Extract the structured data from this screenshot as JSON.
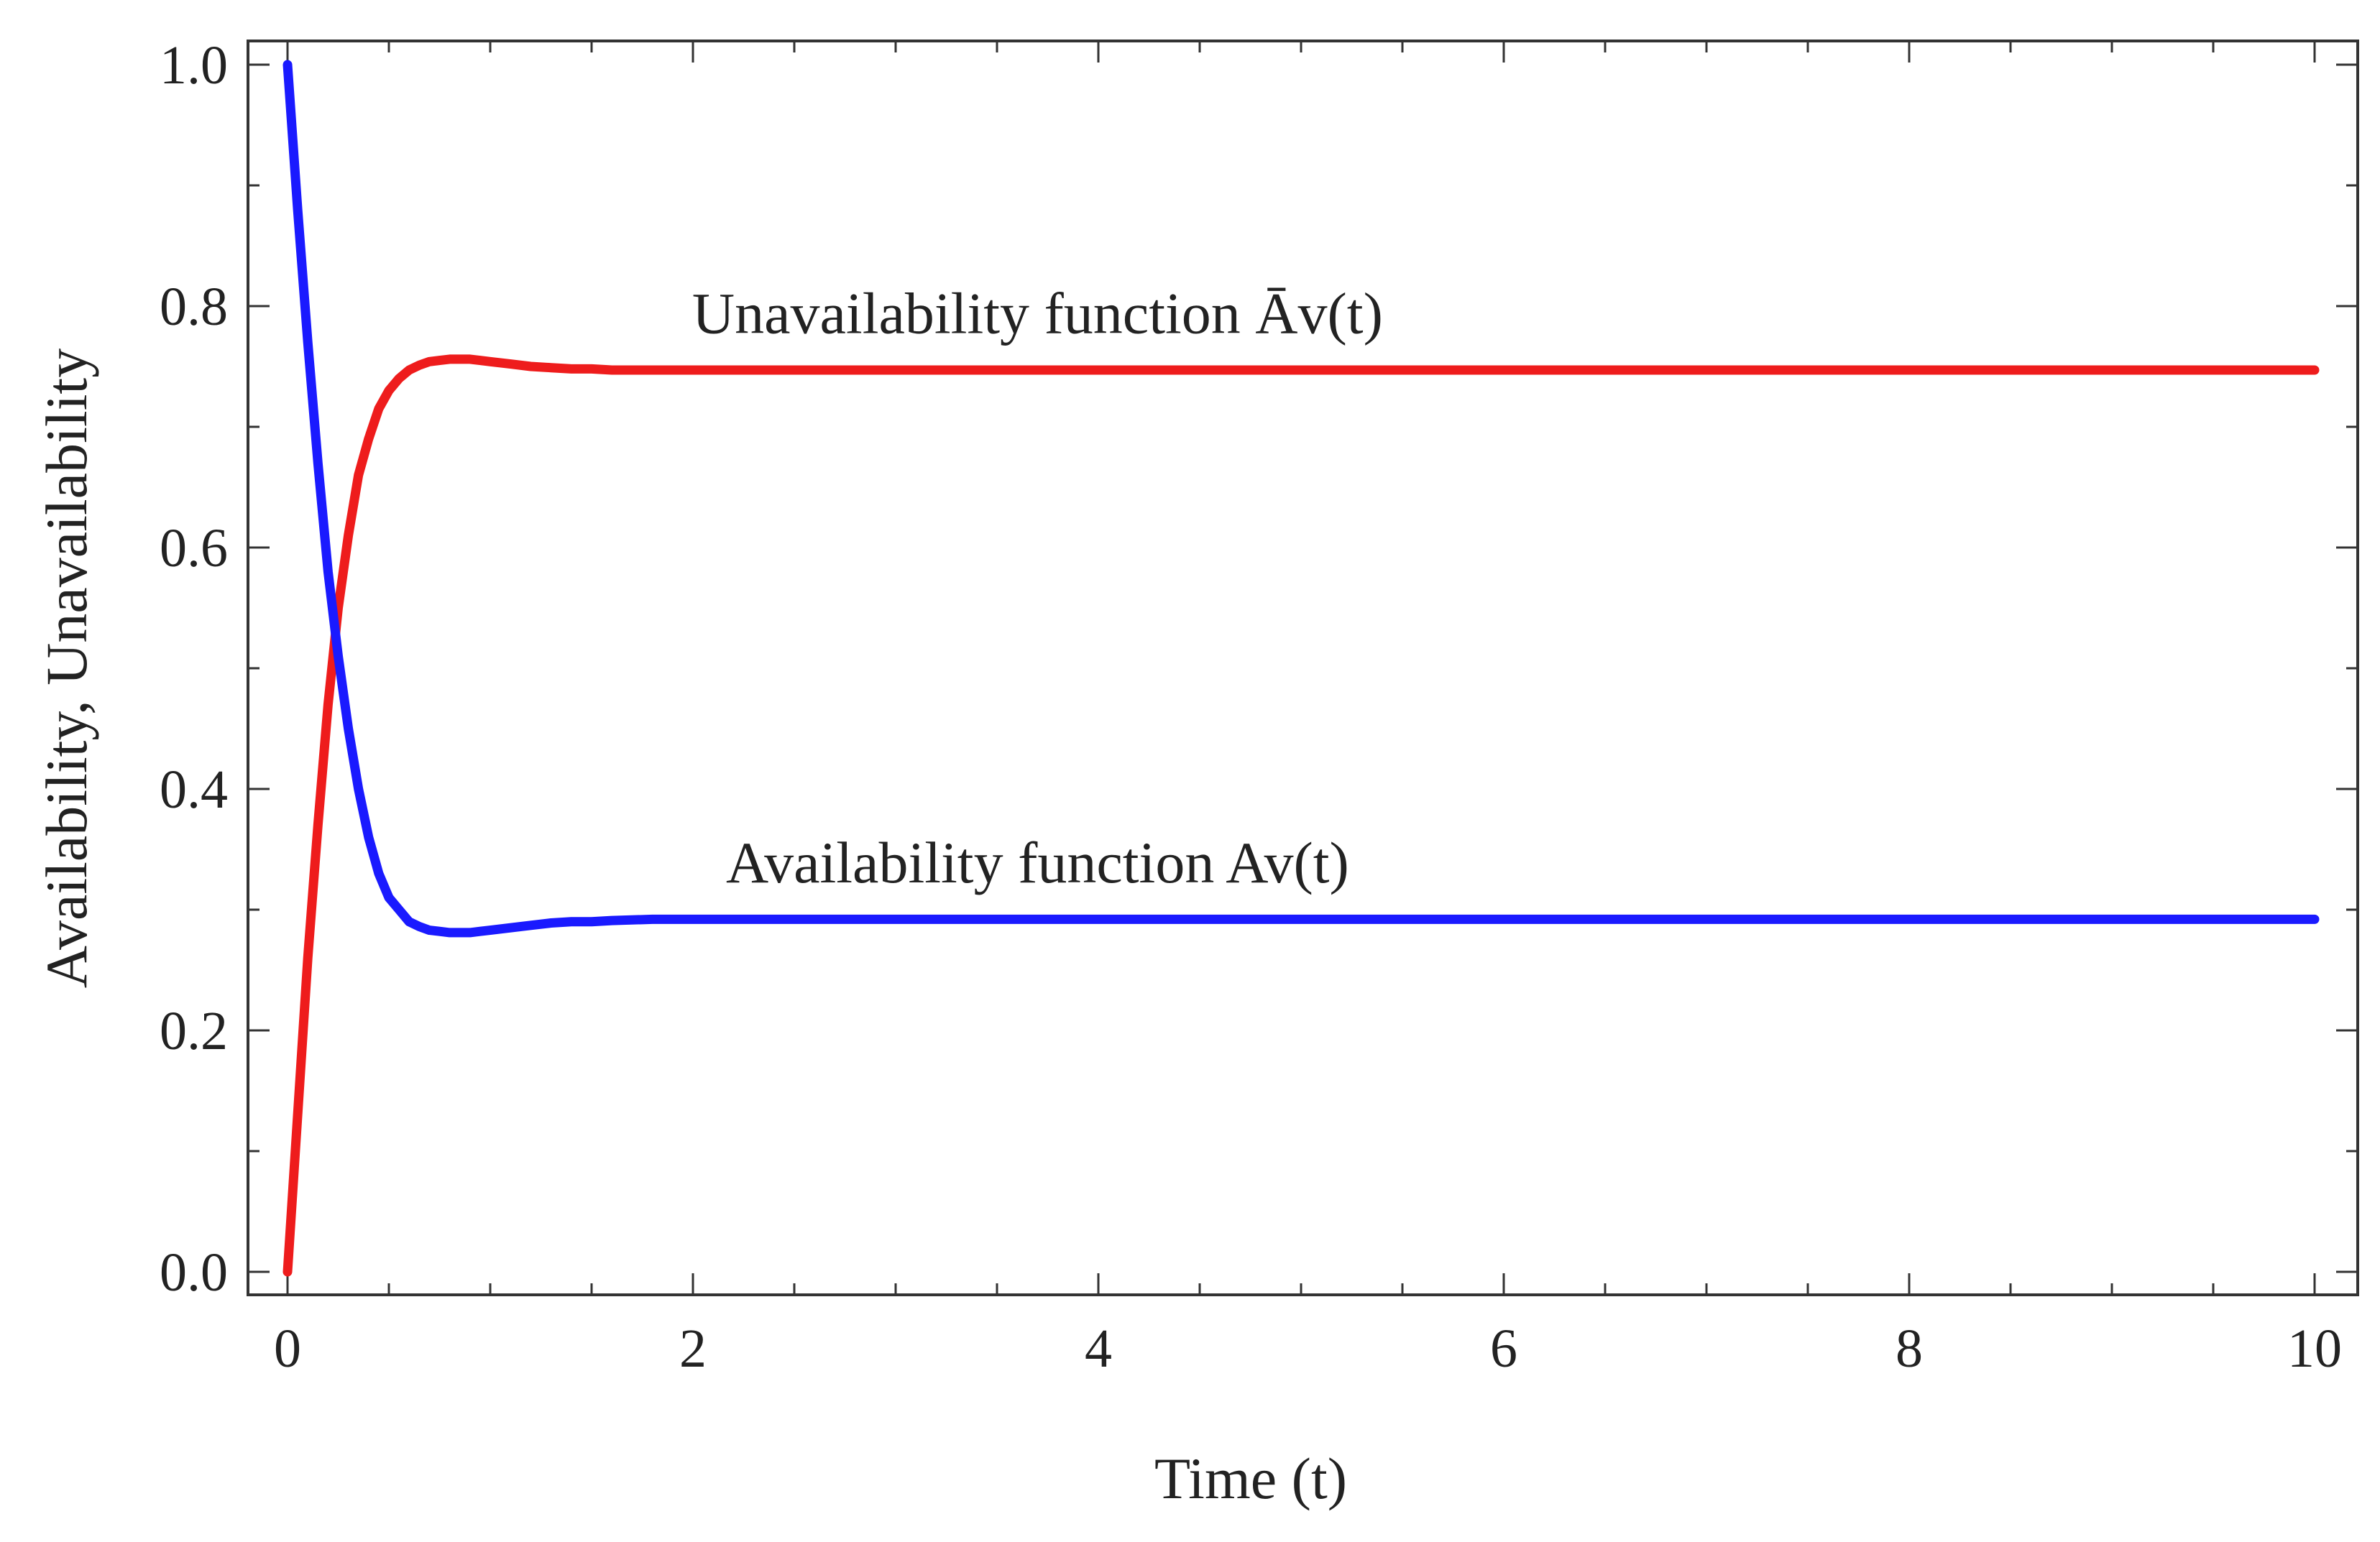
{
  "chart_data": {
    "type": "line",
    "title": "",
    "xlabel": "Time (t)",
    "ylabel": "Availability, Unavailability",
    "xlim": [
      0,
      10
    ],
    "ylim": [
      0,
      1
    ],
    "grid": false,
    "x_ticks": [
      0,
      2,
      4,
      6,
      8,
      10
    ],
    "x_tick_labels": [
      "0",
      "2",
      "4",
      "6",
      "8",
      "10"
    ],
    "y_ticks": [
      0.0,
      0.2,
      0.4,
      0.6,
      0.8,
      1.0
    ],
    "y_tick_labels": [
      "0.0",
      "0.2",
      "0.4",
      "0.6",
      "0.8",
      "1.0"
    ],
    "x_minor_step": 0.5,
    "y_minor_step": 0.1,
    "series": [
      {
        "name": "Availability function Av(t)",
        "color": "#1a1aff",
        "x": [
          0,
          0.05,
          0.1,
          0.15,
          0.2,
          0.25,
          0.3,
          0.35,
          0.4,
          0.45,
          0.5,
          0.55,
          0.6,
          0.65,
          0.7,
          0.75,
          0.8,
          0.85,
          0.9,
          0.95,
          1.0,
          1.1,
          1.2,
          1.3,
          1.4,
          1.5,
          1.6,
          1.8,
          2.0,
          2.5,
          3,
          4,
          5,
          6,
          7,
          8,
          9,
          10
        ],
        "values": [
          1.0,
          0.88,
          0.77,
          0.67,
          0.58,
          0.51,
          0.45,
          0.4,
          0.36,
          0.33,
          0.31,
          0.3,
          0.29,
          0.286,
          0.283,
          0.282,
          0.281,
          0.281,
          0.281,
          0.282,
          0.283,
          0.285,
          0.287,
          0.289,
          0.29,
          0.29,
          0.291,
          0.292,
          0.292,
          0.292,
          0.292,
          0.292,
          0.292,
          0.292,
          0.292,
          0.292,
          0.292,
          0.292
        ]
      },
      {
        "name": "Unavailability function Āv(t)",
        "color": "#ee1c1c",
        "x": [
          0,
          0.05,
          0.1,
          0.15,
          0.2,
          0.25,
          0.3,
          0.35,
          0.4,
          0.45,
          0.5,
          0.55,
          0.6,
          0.65,
          0.7,
          0.75,
          0.8,
          0.85,
          0.9,
          0.95,
          1.0,
          1.1,
          1.2,
          1.3,
          1.4,
          1.5,
          1.6,
          1.8,
          2.0,
          2.5,
          3,
          4,
          5,
          6,
          7,
          8,
          9,
          10
        ],
        "values": [
          0.0,
          0.13,
          0.26,
          0.37,
          0.47,
          0.55,
          0.61,
          0.66,
          0.69,
          0.715,
          0.73,
          0.74,
          0.747,
          0.751,
          0.754,
          0.755,
          0.756,
          0.756,
          0.756,
          0.755,
          0.754,
          0.752,
          0.75,
          0.749,
          0.748,
          0.748,
          0.747,
          0.747,
          0.747,
          0.747,
          0.747,
          0.747,
          0.747,
          0.747,
          0.747,
          0.747,
          0.747,
          0.747
        ]
      }
    ],
    "annotations": [
      {
        "text": "Unavailability function Āv(t)",
        "series": 1,
        "x": 3.7,
        "y": 0.755
      },
      {
        "text": "Availability function Av(t)",
        "series": 0,
        "x": 3.7,
        "y": 0.3
      }
    ]
  }
}
